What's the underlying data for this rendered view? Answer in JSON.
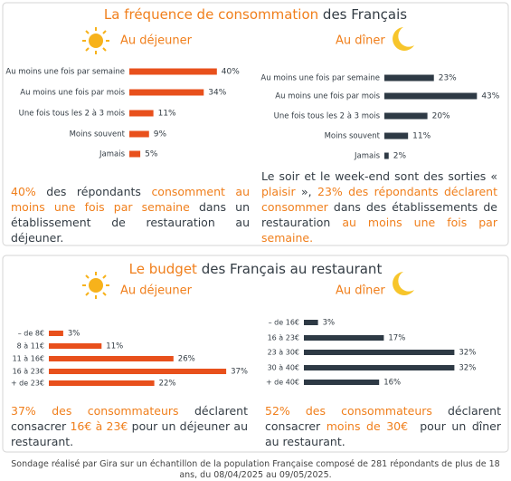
{
  "sections": [
    {
      "title": [
        {
          "text": "La fréquence de consommation",
          "em": true
        },
        {
          "text": " des Français",
          "em": false
        }
      ],
      "paragraphs": [
        [
          {
            "text": "40%",
            "em": true
          },
          {
            "text": " des répondants ",
            "em": false
          },
          {
            "text": "consomment au moins une fois par semaine",
            "em": true
          },
          {
            "text": " dans un établissement de restauration au déjeuner.",
            "em": false
          }
        ],
        [
          {
            "text": "Le soir et le week-end sont des sorties « ",
            "em": false
          },
          {
            "text": "plaisir",
            "em": true
          },
          {
            "text": " », ",
            "em": false
          },
          {
            "text": "23% des répondants déclarent consommer",
            "em": true
          },
          {
            "text": " dans des établissements de restauration ",
            "em": false
          },
          {
            "text": "au moins une fois par semaine.",
            "em": true
          }
        ]
      ]
    },
    {
      "title": [
        {
          "text": "Le budget",
          "em": true
        },
        {
          "text": " des Français au restaurant",
          "em": false
        }
      ],
      "paragraphs": [
        [
          {
            "text": "37% des consommateurs",
            "em": true
          },
          {
            "text": " déclarent consacrer ",
            "em": false
          },
          {
            "text": "16€ à 23€",
            "em": true
          },
          {
            "text": " pour un déjeuner au restaurant.",
            "em": false
          }
        ],
        [
          {
            "text": "52% des consommateurs",
            "em": true
          },
          {
            "text": " déclarent consacrer ",
            "em": false
          },
          {
            "text": "moins de 30€",
            "em": true
          },
          {
            "text": "  pour un dîner au restaurant.",
            "em": false
          }
        ]
      ]
    }
  ],
  "chart_data": [
    {
      "type": "bar",
      "orientation": "horizontal",
      "title": "Au déjeuner",
      "color": "#e8501c",
      "categories": [
        "Au moins une fois par semaine",
        "Au moins une fois par mois",
        "Une fois tous les 2 à 3 mois",
        "Moins souvent",
        "Jamais"
      ],
      "values": [
        40,
        34,
        11,
        9,
        5
      ],
      "value_labels": [
        "40%",
        "34%",
        "11%",
        "9%",
        "5%"
      ]
    },
    {
      "type": "bar",
      "orientation": "horizontal",
      "title": "Au dîner",
      "color": "#2e3a45",
      "categories": [
        "Au moins une fois par semaine",
        "Au moins une fois par mois",
        "Une fois tous les 2 à 3 mois",
        "Moins souvent",
        "Jamais"
      ],
      "values": [
        23,
        43,
        20,
        11,
        2
      ],
      "value_labels": [
        "23%",
        "43%",
        "20%",
        "11%",
        "2%"
      ]
    },
    {
      "type": "bar",
      "orientation": "horizontal",
      "title": "Au déjeuner",
      "color": "#e8501c",
      "categories": [
        "– de 8€",
        "8 à 11€",
        "11 à 16€",
        "16 à 23€",
        "+ de 23€"
      ],
      "values": [
        3,
        11,
        26,
        37,
        22
      ],
      "value_labels": [
        "3%",
        "11%",
        "26%",
        "37%",
        "22%"
      ]
    },
    {
      "type": "bar",
      "orientation": "horizontal",
      "title": "Au dîner",
      "color": "#2e3a45",
      "categories": [
        "– de 16€",
        "16 à 23€",
        "23 à 30€",
        "30 à 40€",
        "+ de 40€"
      ],
      "values": [
        3,
        17,
        32,
        32,
        16
      ],
      "value_labels": [
        "3%",
        "17%",
        "32%",
        "32%",
        "16%"
      ]
    }
  ],
  "footer": "Sondage réalisé par Gira sur un échantillon de la population Française composé de 281 répondants de plus de 18 ans, du 08/04/2025 au 09/05/2025."
}
